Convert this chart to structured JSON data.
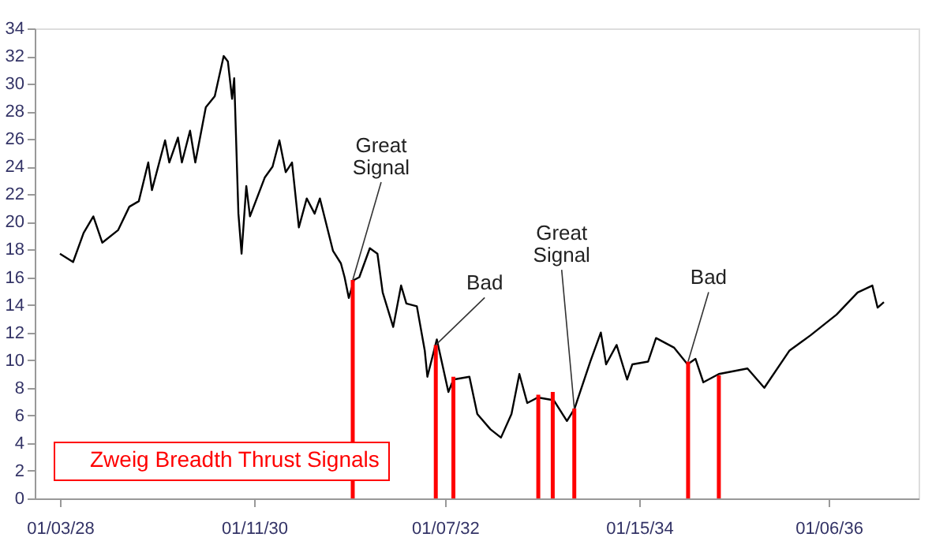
{
  "chart_data": {
    "type": "line",
    "x": [
      "1928-01-03",
      "1928-02-22",
      "1928-04-02",
      "1928-05-09",
      "1928-06-12",
      "1928-08-11",
      "1928-09-23",
      "1928-10-29",
      "1928-12-04",
      "1928-12-18",
      "1929-02-06",
      "1929-02-22",
      "1929-03-27",
      "1929-04-11",
      "1929-05-12",
      "1929-06-01",
      "1929-07-11",
      "1929-08-14",
      "1929-09-17",
      "1929-10-03",
      "1929-10-19",
      "1929-10-27",
      "1929-11-12",
      "1929-11-24",
      "1929-12-12",
      "1929-12-26",
      "1930-02-20",
      "1930-03-22",
      "1930-04-17",
      "1930-05-11",
      "1930-06-04",
      "1930-06-30",
      "1930-07-30",
      "1930-08-29",
      "1930-09-18",
      "1930-11-07",
      "1930-12-07",
      "1930-12-21",
      "1931-01-06",
      "1931-01-26",
      "1931-02-15",
      "1931-03-27",
      "1931-04-25",
      "1931-05-15",
      "1931-06-24",
      "1931-07-24",
      "1931-08-13",
      "1931-09-22",
      "1931-10-22",
      "1931-11-01",
      "1931-12-07",
      "1932-01-20",
      "1932-02-08",
      "1932-04-09",
      "1932-05-09",
      "1932-06-28",
      "1932-08-07",
      "1932-09-16",
      "1932-10-16",
      "1932-11-15",
      "1932-12-25",
      "1933-02-24",
      "1933-04-15",
      "1933-05-14",
      "1933-07-13",
      "1933-08-22",
      "1933-09-11",
      "1933-10-21",
      "1933-11-30",
      "1933-12-20",
      "1934-02-18",
      "1934-03-20",
      "1934-05-28",
      "1934-07-18",
      "1934-08-17",
      "1934-09-16",
      "1934-11-14",
      "1935-03-03",
      "1935-05-06",
      "1935-08-10",
      "1935-10-29",
      "1936-02-05",
      "1936-04-25",
      "1936-06-20",
      "1936-07-10",
      "1936-08-03"
    ],
    "series": [
      {
        "color": "#000000",
        "values": [
          17.7,
          17.1,
          19.2,
          20.4,
          18.5,
          19.4,
          21.1,
          21.5,
          24.3,
          22.3,
          25.9,
          24.3,
          26.1,
          24.3,
          26.6,
          24.3,
          28.3,
          29.1,
          32.0,
          31.6,
          28.9,
          30.4,
          20.6,
          17.7,
          22.6,
          20.4,
          23.2,
          24.0,
          25.9,
          23.6,
          24.3,
          19.6,
          21.7,
          20.6,
          21.7,
          17.9,
          17.0,
          16.0,
          14.5,
          15.8,
          16.0,
          18.1,
          17.7,
          14.9,
          12.4,
          15.4,
          14.1,
          13.9,
          10.7,
          8.8,
          11.5,
          7.7,
          8.6,
          8.8,
          6.1,
          5.0,
          4.4,
          6.1,
          9.0,
          6.9,
          7.3,
          7.1,
          5.6,
          6.5,
          9.9,
          12.0,
          9.7,
          11.1,
          8.6,
          9.7,
          9.9,
          11.6,
          10.9,
          9.7,
          10.1,
          8.4,
          9.0,
          9.4,
          8.0,
          10.7,
          11.8,
          13.3,
          14.9,
          15.4,
          13.8,
          14.2
        ]
      },
      {
        "type": "bar",
        "name": "Zweig Breadth Thrust Signals",
        "color": "#ff0000",
        "x": [
          "1931-01-21",
          "1931-12-03",
          "1932-02-08",
          "1932-12-27",
          "1933-02-20",
          "1933-05-13",
          "1934-07-20",
          "1934-11-14"
        ],
        "values": [
          15.8,
          11.1,
          8.8,
          7.5,
          7.7,
          6.5,
          9.9,
          8.9
        ]
      }
    ],
    "xlim": [
      "1927-09-29",
      "1936-12-13"
    ],
    "xticks": [
      {
        "value": "1928-01-03",
        "label": "01/03/28"
      },
      {
        "value": "1930-01-11",
        "label": "01/11/30"
      },
      {
        "value": "1932-01-07",
        "label": "01/07/32"
      },
      {
        "value": "1934-01-15",
        "label": "01/15/34"
      },
      {
        "value": "1936-01-06",
        "label": "01/06/36"
      }
    ],
    "ylim": [
      0,
      34
    ],
    "yticks": [
      0,
      2,
      4,
      6,
      8,
      10,
      12,
      14,
      16,
      18,
      20,
      22,
      24,
      26,
      28,
      30,
      32,
      34
    ],
    "grid": false,
    "legend": "bottom left",
    "annotations": [
      {
        "text": "Great Signal",
        "x": "1931-01-21",
        "y": 15.8
      },
      {
        "text": "Bad",
        "x": "1931-12-03",
        "y": 11.1
      },
      {
        "text": "Great Signal",
        "x": "1933-05-13",
        "y": 6.5
      },
      {
        "text": "Bad",
        "x": "1934-07-20",
        "y": 9.9
      }
    ]
  }
}
